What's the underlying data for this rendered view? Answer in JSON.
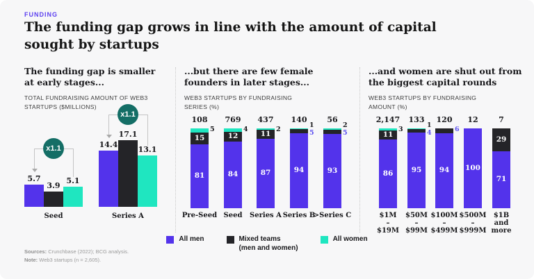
{
  "page": {
    "kicker": "FUNDING",
    "title": "The funding gap grows in line with the amount of capital sought by startups",
    "sources_label": "Sources:",
    "sources_text": " Crunchbase (2022); BCG analysis.",
    "note_label": "Note:",
    "note_text": " Web3 startups (n = 2,605)."
  },
  "colors": {
    "men": "#5333EB",
    "mixed": "#242428",
    "women": "#1FE6C0",
    "badge": "#146E66",
    "accent": "#5B3FF0"
  },
  "panels": [
    {
      "heading": "The funding gap is smaller at early stages...",
      "subtitle": "TOTAL FUNDRAISING AMOUNT OF WEB3 STARTUPS ($MILLIONS)"
    },
    {
      "heading": "...but there are few female founders in later stages...",
      "subtitle": "WEB3 STARTUPS BY FUNDRAISING SERIES (%)"
    },
    {
      "heading": "...and women are shut out from the biggest capital rounds",
      "subtitle": "WEB3 STARTUPS BY FUNDRAISING AMOUNT (%)"
    }
  ],
  "legend": [
    {
      "series": "men",
      "label": "All men"
    },
    {
      "series": "mixed",
      "label": "Mixed teams",
      "label2": "(men and women)"
    },
    {
      "series": "women",
      "label": "All women"
    }
  ],
  "chart_data": [
    {
      "type": "bar",
      "title": "Total fundraising amount of Web3 startups ($millions)",
      "categories": [
        "Seed",
        "Series A"
      ],
      "series": [
        {
          "name": "All men",
          "values": [
            5.7,
            14.4
          ]
        },
        {
          "name": "Mixed teams",
          "values": [
            3.9,
            17.1
          ]
        },
        {
          "name": "All women",
          "values": [
            5.1,
            13.1
          ]
        }
      ],
      "annotations": [
        {
          "group": "Seed",
          "badge": "x1.1"
        },
        {
          "group": "Series A",
          "badge": "x1.1"
        }
      ],
      "legend_position": "bottom",
      "grid": false
    },
    {
      "type": "bar",
      "stacked": true,
      "unit": "%",
      "title": "Web3 startups by fundraising series (%)",
      "categories": [
        "Pre-Seed",
        "Seed",
        "Series A",
        "Series B",
        ">Series C"
      ],
      "totals": [
        "108",
        "769",
        "437",
        "140",
        "56"
      ],
      "series": [
        {
          "name": "All men",
          "values": [
            81,
            84,
            87,
            94,
            93
          ]
        },
        {
          "name": "Mixed teams",
          "values": [
            15,
            12,
            11,
            5,
            5
          ]
        },
        {
          "name": "All women",
          "values": [
            5,
            4,
            2,
            1,
            2
          ]
        }
      ],
      "ylim": [
        0,
        100
      ],
      "grid": false
    },
    {
      "type": "bar",
      "stacked": true,
      "unit": "%",
      "title": "Web3 startups by fundraising amount (%)",
      "categories": [
        "$1M|–|$19M",
        "$50M|–|$99M",
        "$100M|–|$499M",
        "$500M|–|$999M",
        "$1B|and|more"
      ],
      "totals": [
        "2,147",
        "133",
        "120",
        "12",
        "7"
      ],
      "series": [
        {
          "name": "All men",
          "values": [
            86,
            95,
            94,
            100,
            71
          ]
        },
        {
          "name": "Mixed teams",
          "values": [
            11,
            4,
            6,
            0,
            29
          ]
        },
        {
          "name": "All women",
          "values": [
            3,
            1,
            0,
            0,
            0
          ]
        }
      ],
      "ylim": [
        0,
        100
      ],
      "grid": false
    }
  ]
}
